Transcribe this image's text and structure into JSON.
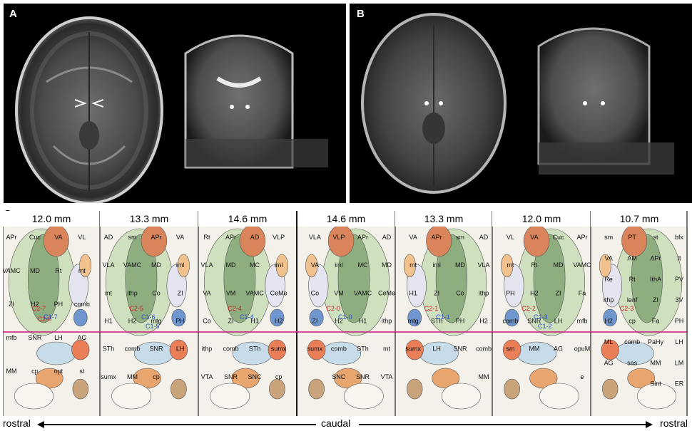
{
  "panels": {
    "a": {
      "letter": "A"
    },
    "b": {
      "letter": "B"
    },
    "c": {
      "letter": "C"
    }
  },
  "sections": [
    {
      "depth": "12.0 mm",
      "labels": [
        "APr",
        "Cuc",
        "VA",
        "VL",
        "VAMC",
        "MD",
        "Rt",
        "mt",
        "ZI",
        "H2",
        "PH",
        "comb",
        "mfb",
        "SNR",
        "LH",
        "AG",
        "MM",
        "cp",
        "opt",
        "st"
      ],
      "contacts_red": [
        "C2-7",
        "C2-6"
      ],
      "contacts_blue": [
        "C1-7"
      ]
    },
    {
      "depth": "13.3 mm",
      "labels": [
        "AD",
        "sm",
        "APr",
        "VA",
        "VLA",
        "VAMC",
        "MD",
        "iml",
        "mt",
        "ithp",
        "Co",
        "ZI",
        "H1",
        "H2",
        "mtg",
        "PH",
        "STh",
        "comb",
        "SNR",
        "LH",
        "sumx",
        "MM",
        "cp"
      ],
      "contacts_red": [
        "C2-5"
      ],
      "contacts_blue": [
        "C1-6",
        "C1-5"
      ]
    },
    {
      "depth": "14.6 mm",
      "labels": [
        "Rt",
        "APr",
        "AD",
        "VLP",
        "VLA",
        "MD",
        "MC",
        "iml",
        "VA",
        "VM",
        "VAMC",
        "CeMe",
        "Co",
        "ZI",
        "H1",
        "H2",
        "ithp",
        "comb",
        "STh",
        "sumx",
        "VTA",
        "SNR",
        "SNC",
        "cp"
      ],
      "contacts_red": [
        "C2-4"
      ],
      "contacts_blue": [
        "C1-4"
      ]
    },
    {
      "depth": "14.6 mm",
      "labels": [
        "AD",
        "APr",
        "VLP",
        "VLA",
        "MD",
        "MC",
        "iml",
        "VA",
        "CeMe",
        "VAMC",
        "VM",
        "Co",
        "ithp",
        "H1",
        "H2",
        "ZI",
        "mt",
        "STh",
        "comb",
        "sumx",
        "VTA",
        "SNR",
        "SNC"
      ],
      "contacts_red": [
        "C2-0"
      ],
      "contacts_blue": [
        "C1-0"
      ]
    },
    {
      "depth": "13.3 mm",
      "labels": [
        "AD",
        "sm",
        "APr",
        "VA",
        "VLA",
        "MD",
        "iml",
        "mt",
        "ithp",
        "Co",
        "ZI",
        "H1",
        "H2",
        "PH",
        "STh",
        "mtg",
        "comb",
        "SNR",
        "LH",
        "sumx",
        "MM"
      ],
      "contacts_red": [
        "C2-1"
      ],
      "contacts_blue": [
        "C1-1"
      ]
    },
    {
      "depth": "12.0 mm",
      "labels": [
        "APr",
        "Cuc",
        "VA",
        "VL",
        "VAMC",
        "MD",
        "Rt",
        "mt",
        "Fa",
        "ZI",
        "H2",
        "PH",
        "mfb",
        "LH",
        "SNR",
        "comb",
        "opuM",
        "AG",
        "MM",
        "sm",
        "e"
      ],
      "contacts_red": [
        "C2-2"
      ],
      "contacts_blue": [
        "C1-3",
        "C1-2"
      ]
    },
    {
      "depth": "10.7 mm",
      "labels": [
        "bfx",
        "st",
        "PT",
        "sm",
        "tt",
        "APr",
        "AM",
        "VA",
        "PV",
        "IthA",
        "Rt",
        "Re",
        "3V",
        "ZI",
        "lenf",
        "ithp",
        "PH",
        "Fa",
        "cp",
        "H2",
        "LH",
        "PaHy",
        "comb",
        "ML",
        "LM",
        "MM",
        "sas",
        "AG",
        "ER",
        "Sint"
      ],
      "contacts_red": [
        "C2-3"
      ],
      "contacts_blue": []
    }
  ],
  "axis": {
    "left": "rostral",
    "center": "caudal",
    "right": "rostral"
  },
  "colors": {
    "magenta_line": "#c8197a",
    "contact_red": "#d6232a",
    "contact_blue": "#2a4bd4"
  }
}
